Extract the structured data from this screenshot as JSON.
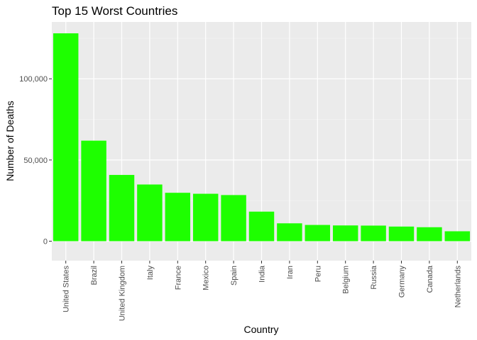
{
  "chart_data": {
    "type": "bar",
    "title": "Top 15 Worst Countries",
    "xlabel": "Country",
    "ylabel": "Number of Deaths",
    "categories": [
      "United States",
      "Brazil",
      "United Kingdom",
      "Italy",
      "France",
      "Mexico",
      "Spain",
      "India",
      "Iran",
      "Peru",
      "Belgium",
      "Russia",
      "Germany",
      "Canada",
      "Netherlands"
    ],
    "values": [
      128000,
      61900,
      40800,
      34900,
      29800,
      29200,
      28400,
      18200,
      11000,
      10000,
      9700,
      9600,
      9000,
      8600,
      6100
    ],
    "ylim": [
      -12000,
      135000
    ],
    "yticks": [
      0,
      50000,
      100000
    ],
    "ytick_labels": [
      "0",
      "50,000",
      "100,000"
    ],
    "grid": true,
    "legend": "none",
    "colors": {
      "bar": "#1eff00",
      "panel": "#ebebeb",
      "grid_major": "#ffffff",
      "grid_minor": "#f5f5f5",
      "tick": "#333333"
    }
  }
}
